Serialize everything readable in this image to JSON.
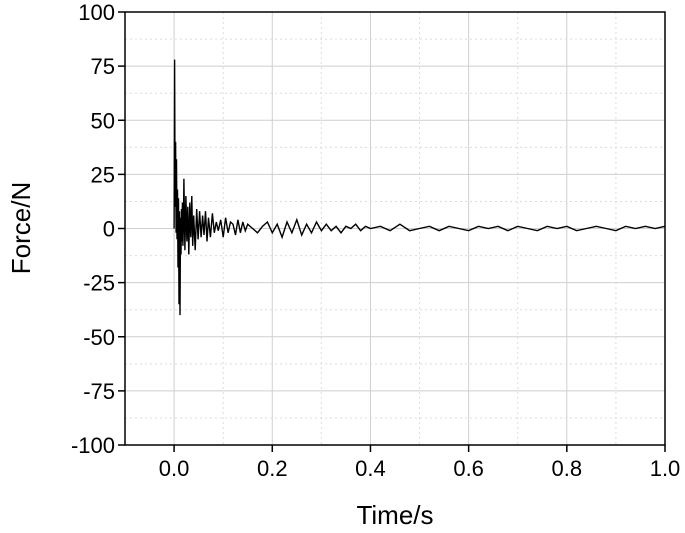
{
  "chart_data": {
    "type": "line",
    "title": "",
    "xlabel": "Time/s",
    "ylabel": "Force/N",
    "xlim": [
      -0.1,
      1.0
    ],
    "ylim": [
      -100,
      100
    ],
    "x_ticks": [
      0.0,
      0.2,
      0.4,
      0.6,
      0.8,
      1.0
    ],
    "x_tick_labels": [
      "0.0",
      "0.2",
      "0.4",
      "0.6",
      "0.8",
      "1.0"
    ],
    "y_ticks": [
      100,
      75,
      50,
      25,
      0,
      -25,
      -50,
      -75,
      -100
    ],
    "y_tick_labels": [
      "100",
      "75",
      "50",
      "25",
      "0",
      "-25",
      "-50",
      "-75",
      "-100"
    ],
    "grid": true,
    "legend": "none",
    "line_color": "#000000",
    "series": [
      {
        "x": [
          0.0,
          0.001,
          0.002,
          0.003,
          0.004,
          0.005,
          0.006,
          0.007,
          0.008,
          0.009,
          0.01,
          0.011,
          0.012,
          0.013,
          0.014,
          0.015,
          0.016,
          0.017,
          0.018,
          0.019,
          0.02,
          0.022,
          0.024,
          0.026,
          0.028,
          0.03,
          0.032,
          0.034,
          0.036,
          0.038,
          0.04,
          0.043,
          0.046,
          0.049,
          0.052,
          0.055,
          0.058,
          0.061,
          0.064,
          0.067,
          0.07,
          0.074,
          0.078,
          0.082,
          0.086,
          0.09,
          0.095,
          0.1,
          0.105,
          0.11,
          0.115,
          0.12,
          0.125,
          0.13,
          0.135,
          0.14,
          0.145,
          0.15,
          0.16,
          0.17,
          0.18,
          0.19,
          0.2,
          0.21,
          0.22,
          0.23,
          0.24,
          0.25,
          0.26,
          0.27,
          0.28,
          0.29,
          0.3,
          0.31,
          0.32,
          0.33,
          0.34,
          0.35,
          0.36,
          0.37,
          0.38,
          0.39,
          0.4,
          0.42,
          0.44,
          0.46,
          0.48,
          0.5,
          0.52,
          0.54,
          0.56,
          0.58,
          0.6,
          0.62,
          0.64,
          0.66,
          0.68,
          0.7,
          0.72,
          0.74,
          0.76,
          0.78,
          0.8,
          0.82,
          0.84,
          0.86,
          0.88,
          0.9,
          0.92,
          0.94,
          0.96,
          0.98,
          1.0
        ],
        "y": [
          0,
          78,
          10,
          40,
          -2,
          32,
          -5,
          18,
          -18,
          14,
          -35,
          8,
          -40,
          5,
          -12,
          9,
          -6,
          12,
          -8,
          2,
          23,
          -10,
          15,
          -6,
          10,
          -12,
          12,
          -4,
          15,
          -8,
          6,
          -10,
          9,
          -5,
          8,
          -4,
          6,
          -3,
          8,
          -6,
          5,
          -4,
          7,
          -2,
          3,
          -1,
          4,
          -4,
          5,
          -2,
          3,
          2,
          -3,
          4,
          -2,
          3,
          -1,
          2,
          0,
          -2,
          1,
          3,
          -2,
          2,
          -4,
          3,
          -2,
          4,
          -3,
          2,
          -2,
          3,
          -1,
          2,
          -1,
          1,
          -2,
          1,
          0,
          2,
          -1,
          1,
          0,
          1,
          -1,
          2,
          -1,
          0,
          1,
          -1,
          1,
          0,
          -1,
          1,
          0,
          1,
          -1,
          1,
          0,
          -1,
          1,
          0,
          1,
          -1,
          0,
          1,
          0,
          -1,
          1,
          0,
          1,
          0,
          1
        ]
      }
    ]
  }
}
